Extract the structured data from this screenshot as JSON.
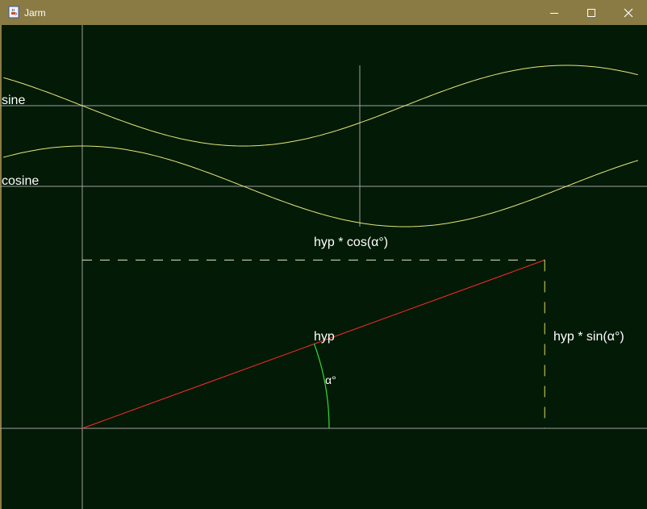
{
  "window": {
    "title": "Jarm",
    "app_icon": "java-cup-icon",
    "controls": {
      "minimize_icon": "minimize-icon",
      "maximize_icon": "maximize-icon",
      "close_icon": "close-icon"
    }
  },
  "colors": {
    "titlebar": "#8a7b45",
    "canvas": "#021a06",
    "grid": "#a0a0a0",
    "wave": "#e6e67a",
    "hypotenuse": "#ff2a2a",
    "angle_arc": "#33dd33",
    "dashes": "#e8e8c0",
    "text": "#ffffff"
  },
  "labels": {
    "sine": "sine",
    "cosine": "cosine",
    "cos_projection": "hyp * cos(α°)",
    "sin_projection": "hyp * sin(α°)",
    "hypotenuse": "hyp",
    "angle": "α°"
  },
  "chart_data": {
    "type": "line",
    "title": "",
    "angle_deg": 20,
    "series": [
      {
        "name": "sine",
        "function": "sin",
        "x_range_deg": [
          -90,
          360
        ],
        "amplitude": 1
      },
      {
        "name": "cosine",
        "function": "cos",
        "x_range_deg": [
          -90,
          360
        ],
        "amplitude": 1
      }
    ]
  }
}
